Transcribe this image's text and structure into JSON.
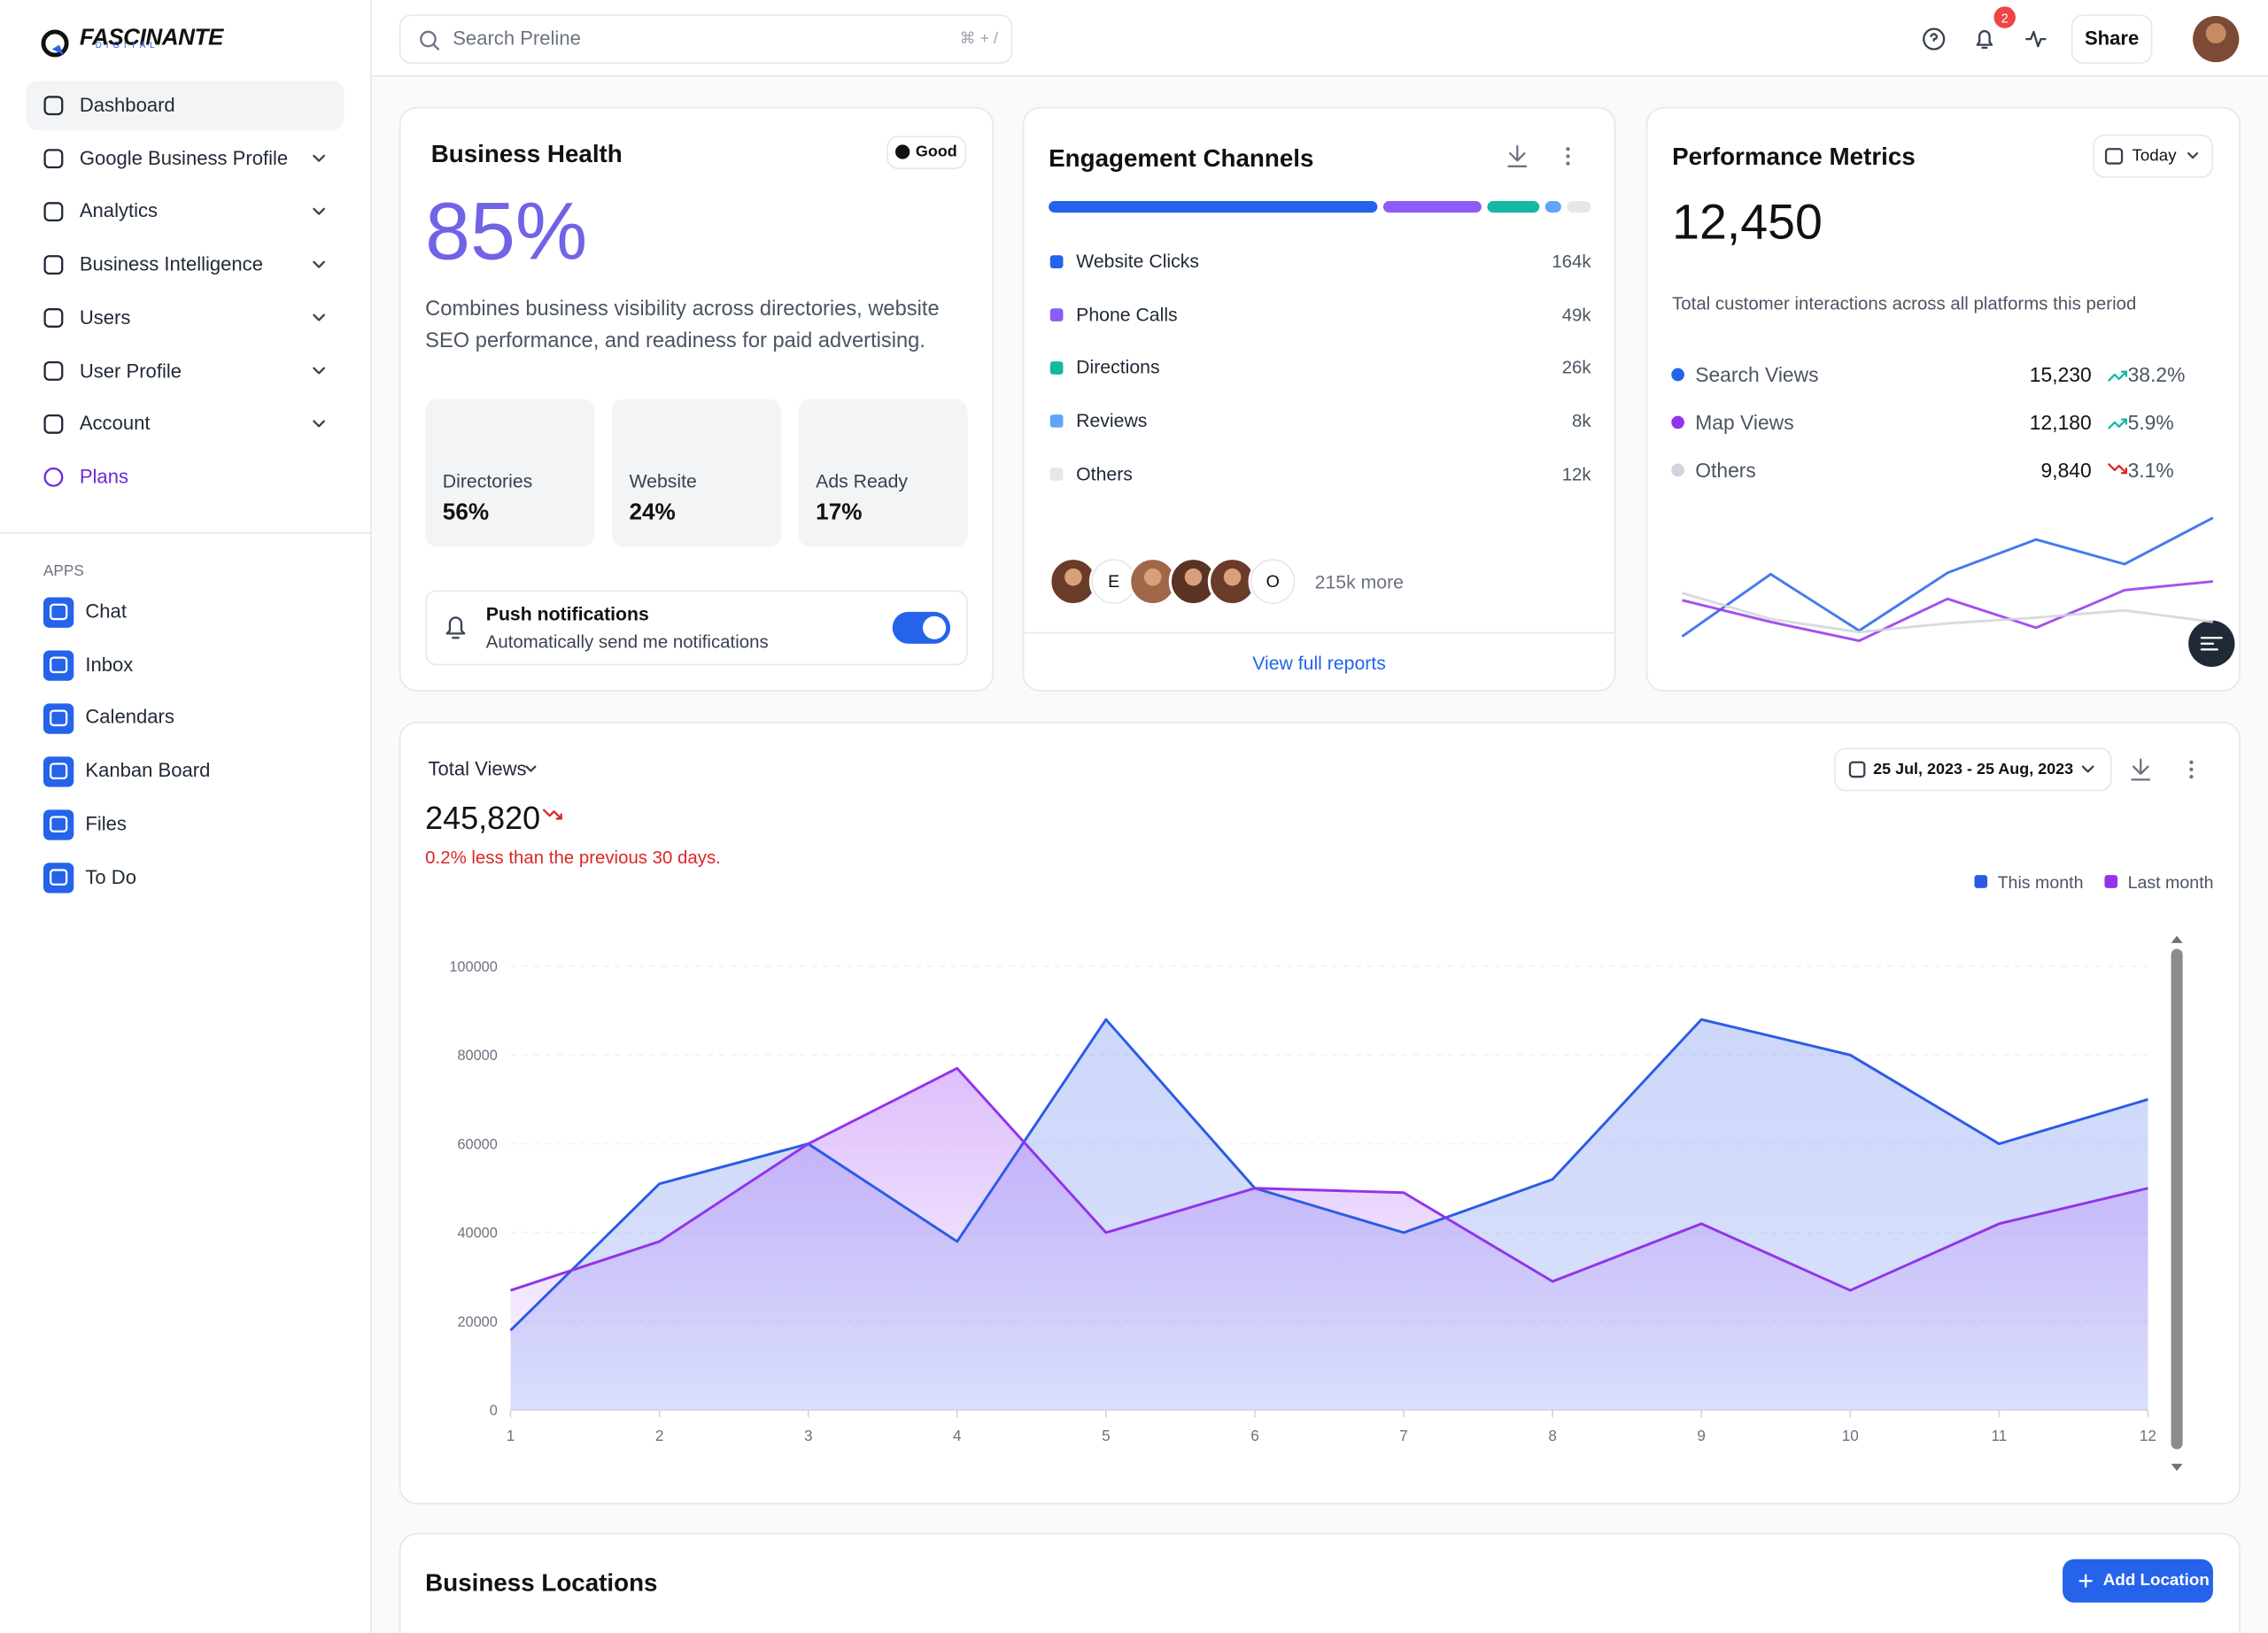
{
  "sidebar": {
    "logo": "FASCINANTE",
    "logo_sub": "DIGITAL",
    "nav": [
      "Dashboard",
      "Google Business Profile",
      "Analytics",
      "Business Intelligence",
      "Users",
      "User Profile",
      "Account",
      "Plans"
    ],
    "apps_heading": "APPS",
    "apps": [
      "Chat",
      "Inbox",
      "Calendars",
      "Kanban Board",
      "Files",
      "To Do"
    ]
  },
  "topbar": {
    "search_placeholder": "Search Preline",
    "shortcut": "⌘ + /",
    "notification_count": 2,
    "share": "Share"
  },
  "business_health": {
    "title": "Business Health",
    "badge": "Good",
    "score": "85%",
    "description": "Combines business visibility across directories, website SEO performance, and readiness for paid advertising.",
    "tiles": [
      {
        "label": "Directories",
        "value": "56%"
      },
      {
        "label": "Website",
        "value": "24%"
      },
      {
        "label": "Ads Ready",
        "value": "17%"
      }
    ],
    "push": {
      "title": "Push notifications",
      "subtitle": "Automatically send me notifications"
    }
  },
  "engagement": {
    "title": "Engagement Channels",
    "channels": [
      {
        "name": "Website Clicks",
        "color": "#2563eb",
        "value": 164000,
        "value_label": "164k"
      },
      {
        "name": "Phone Calls",
        "color": "#8b5cf6",
        "value": 49000,
        "value_label": "49k"
      },
      {
        "name": "Directions",
        "color": "#14b8a6",
        "value": 26000,
        "value_label": "26k"
      },
      {
        "name": "Reviews",
        "color": "#60a5fa",
        "value": 8000,
        "value_label": "8k"
      },
      {
        "name": "Others",
        "color": "#e5e7eb",
        "value": 12000,
        "value_label": "12k"
      }
    ],
    "avatar_initials": [
      "E",
      "O"
    ],
    "more": "215k more",
    "link": "View full reports"
  },
  "performance": {
    "title": "Performance Metrics",
    "period": "Today",
    "total": "12,450",
    "description": "Total customer interactions across all platforms this period",
    "rows": [
      {
        "name": "Search Views",
        "color": "#2563eb",
        "value": "15,230",
        "change": "38.2%",
        "direction": "up",
        "trend": [
          10,
          53,
          14,
          54,
          77,
          60,
          92
        ]
      },
      {
        "name": "Map Views",
        "color": "#9333ea",
        "value": "12,180",
        "change": "5.9%",
        "direction": "up",
        "trend": [
          35,
          20,
          7,
          36,
          16,
          42,
          48
        ]
      },
      {
        "name": "Others",
        "color": "#d1d5db",
        "value": "9,840",
        "change": "3.1%",
        "direction": "down",
        "trend": [
          40,
          22,
          13,
          19,
          23,
          28,
          20
        ]
      }
    ]
  },
  "total_views": {
    "title": "Total Views",
    "value": "245,820",
    "note": "0.2% less than the previous 30 days.",
    "date_range": "25 Jul, 2023 - 25 Aug, 2023",
    "chart": {
      "type": "area",
      "x": [
        1,
        2,
        3,
        4,
        5,
        6,
        7,
        8,
        9,
        10,
        11,
        12
      ],
      "xlim": [
        1,
        12
      ],
      "xticks": [
        1,
        2,
        3,
        4,
        5,
        6,
        7,
        8,
        9,
        10,
        11,
        12
      ],
      "ylim": [
        0,
        100000
      ],
      "yticks": [
        0,
        20000,
        40000,
        60000,
        80000,
        100000
      ],
      "grid": true,
      "series": [
        {
          "name": "This month",
          "color": "#2b5be6",
          "values": [
            18000,
            51000,
            60000,
            38000,
            88000,
            50000,
            40000,
            52000,
            88000,
            80000,
            60000,
            70000
          ]
        },
        {
          "name": "Last month",
          "color": "#9333ea",
          "values": [
            27000,
            38000,
            60000,
            77000,
            40000,
            50000,
            49000,
            29000,
            42000,
            27000,
            42000,
            50000
          ]
        }
      ]
    }
  },
  "locations": {
    "title": "Business Locations",
    "add_button": "Add Location"
  }
}
